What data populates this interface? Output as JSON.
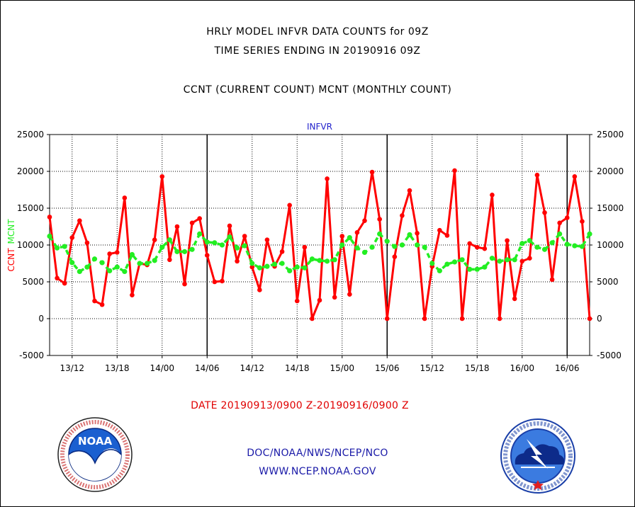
{
  "title_line1": "HRLY MODEL INFVR DATA COUNTS for 09Z",
  "title_line2": "TIME SERIES ENDING IN 20190916 09Z",
  "subtitle": "CCNT (CURRENT COUNT) MCNT (MONTHLY COUNT)",
  "date_range": "DATE 20190913/0900 Z-20190916/0900 Z",
  "footer_org": "DOC/NOAA/NWS/NCEP/NCO",
  "footer_url": "WWW.NCEP.NOAA.GOV",
  "logos": {
    "left": {
      "name": "noaa-logo",
      "text": "NOAA"
    },
    "right": {
      "name": "national-weather-service-logo"
    }
  },
  "chart_data": {
    "type": "line",
    "title": "INFVR",
    "ylabel_left": "CCNT",
    "ylabel_left2": "MCNT",
    "ylim": [
      -5000,
      25000
    ],
    "yticks": [
      -5000,
      0,
      5000,
      10000,
      15000,
      20000,
      25000
    ],
    "ytick_labels": [
      "-5000",
      "0",
      "5000",
      "10000",
      "15000",
      "20000",
      "25000"
    ],
    "xlim_hours": [
      0,
      72
    ],
    "xtick_hours": [
      3,
      9,
      15,
      21,
      27,
      33,
      39,
      45,
      51,
      57,
      63,
      69
    ],
    "xtick_labels": [
      "13/12",
      "13/18",
      "14/00",
      "14/06",
      "14/12",
      "14/18",
      "15/00",
      "15/06",
      "15/12",
      "15/18",
      "16/00",
      "16/06"
    ],
    "day_separators_hours": [
      21,
      45,
      69
    ],
    "grid": true,
    "series": [
      {
        "name": "CCNT",
        "color": "#ff0000",
        "values": [
          13800,
          5500,
          4800,
          11000,
          13300,
          10300,
          2400,
          1900,
          8800,
          9000,
          16400,
          3200,
          7500,
          7300,
          10700,
          19300,
          8000,
          12500,
          4700,
          13000,
          13600,
          8600,
          5000,
          5100,
          12600,
          7800,
          11200,
          7000,
          3900,
          10700,
          7100,
          9100,
          15400,
          2400,
          9700,
          0,
          2500,
          19000,
          2900,
          11200,
          3300,
          11700,
          13300,
          19900,
          13500,
          0,
          8400,
          14000,
          17400,
          11600,
          0,
          7100,
          12000,
          11300,
          20100,
          0,
          10200,
          9700,
          9500,
          16800,
          0,
          10600,
          2700,
          7800,
          8200,
          19500,
          14400,
          5300,
          13000,
          13700,
          19300,
          13200,
          0
        ]
      },
      {
        "name": "MCNT",
        "color": "#22ee22",
        "values": [
          11200,
          9600,
          9800,
          7600,
          6400,
          7000,
          8100,
          7600,
          6500,
          7000,
          6400,
          8700,
          7500,
          7500,
          7900,
          9700,
          10700,
          9100,
          9100,
          9400,
          11500,
          10400,
          10300,
          10000,
          11100,
          9600,
          9900,
          7500,
          6900,
          7100,
          7400,
          7500,
          6500,
          7000,
          6900,
          8100,
          7900,
          7800,
          8000,
          10000,
          11000,
          9600,
          9000,
          9700,
          11500,
          10500,
          9800,
          10000,
          11400,
          10000,
          9700,
          7500,
          6500,
          7400,
          7700,
          8000,
          6700,
          6700,
          7000,
          8200,
          7800,
          8000,
          8000,
          10200,
          10600,
          9700,
          9400,
          10300,
          11500,
          10100,
          9900,
          9800,
          11500
        ]
      }
    ]
  }
}
